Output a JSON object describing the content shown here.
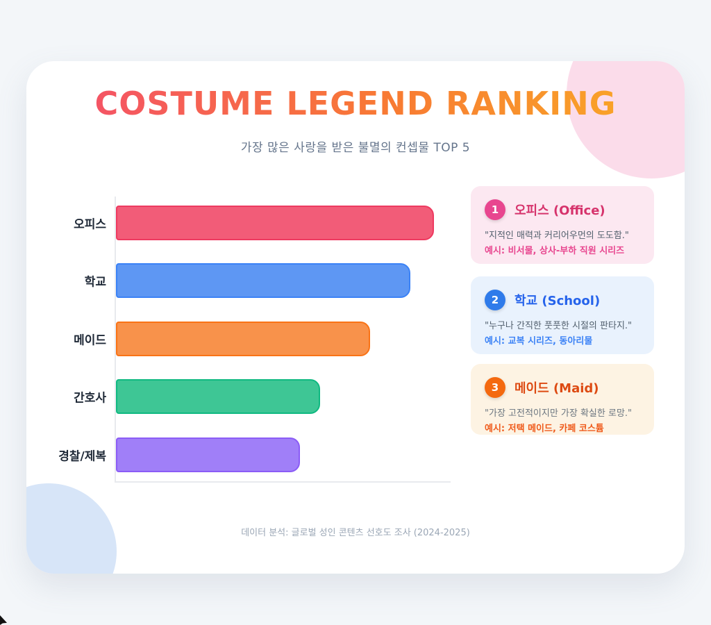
{
  "page": {
    "background": "#F3F6F9",
    "card_background": "#FFFFFF"
  },
  "decor": {
    "pink_circle": "#FBDCEA",
    "blue_circle": "#D7E5F8"
  },
  "header": {
    "title": "COSTUME LEGEND RANKING",
    "subtitle": "가장 많은 사랑을 받은 불멸의 컨셉물 TOP 5",
    "gradient": [
      "#F4506A",
      "#F87A33",
      "#F9A826"
    ]
  },
  "chart_data": {
    "type": "bar",
    "orientation": "horizontal",
    "categories": [
      "오피스",
      "학교",
      "메이드",
      "간호사",
      "경찰/제복"
    ],
    "values": [
      95,
      88,
      76,
      61,
      55
    ],
    "title": "COSTUME LEGEND RANKING",
    "subtitle": "가장 많은 사랑을 받은 불멸의 컨셉물 TOP 5",
    "xlabel": "",
    "ylabel": "",
    "xlim": [
      0,
      100
    ],
    "grid": false,
    "axis_tick_labels": "none visible",
    "bar_colors": [
      "#F25C78",
      "#5E97F3",
      "#F8924B",
      "#3EC695",
      "#A07FF8"
    ],
    "bar_border_colors": [
      "#EE3A60",
      "#3B82F6",
      "#F97316",
      "#10B981",
      "#8B5CF6"
    ]
  },
  "ranking_cards": [
    {
      "rank": "1",
      "title": "오피스 (Office)",
      "quote": "\"지적인 매력과 커리어우먼의 도도함.\"",
      "example": "예시: 비서물, 상사-부하 직원 시리즈",
      "bg": "#FCE8F1",
      "accent": "#E8468F",
      "title_color": "#D6336C",
      "example_color": "#E8468F"
    },
    {
      "rank": "2",
      "title": "학교 (School)",
      "quote": "\"누구나 간직한 풋풋한 시절의 판타지.\"",
      "example": "예시: 교복 시리즈, 동아리물",
      "bg": "#E9F2FD",
      "accent": "#2F7BEA",
      "title_color": "#2563EB",
      "example_color": "#3B82F6"
    },
    {
      "rank": "3",
      "title": "메이드 (Maid)",
      "quote": "\"가장 고전적이지만 가장 확실한 로망.\"",
      "example": "예시: 저택 메이드, 카페 코스튬",
      "bg": "#FDF3E3",
      "accent": "#F4690F",
      "title_color": "#DD4A12",
      "example_color": "#EF5A1A"
    }
  ],
  "footer": {
    "source": "데이터 분석: 글로벌 성인 콘텐츠 선호도 조사 (2024-2025)"
  }
}
